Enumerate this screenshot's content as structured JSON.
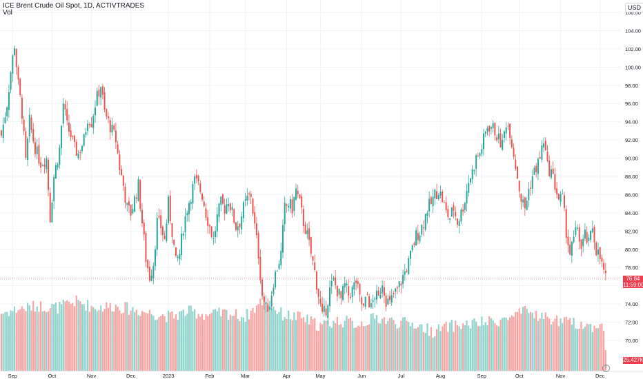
{
  "legend": {
    "title": "ICE Brent Crude Oil Spot, 1D, ACTIVTRADES",
    "volume_label": "Vol",
    "currency": "USD"
  },
  "last": {
    "price_label": "76.84",
    "countdown": "11:59:00",
    "volume_label": "25.427K"
  },
  "colors": {
    "up": "#26a69a",
    "down": "#ef5350",
    "up_volume": "#8fd3cc",
    "down_volume": "#f7a5a3",
    "grid": "#f0f3fa",
    "axis_text": "#131722",
    "last_price_line": "#f7525f"
  },
  "chart_data": {
    "type": "candlestick",
    "title": "ICE Brent Crude Oil Spot, 1D, ACTIVTRADES",
    "y_axis": {
      "side": "right",
      "price_ticks": [
        "106.00",
        "104.00",
        "102.00",
        "100.00",
        "98.00",
        "96.00",
        "94.00",
        "92.00",
        "90.00",
        "88.00",
        "86.00",
        "84.00",
        "82.00",
        "80.00",
        "78.00",
        "76.00",
        "74.00",
        "72.00",
        "70.00"
      ],
      "price_range": [
        68.5,
        106.0
      ]
    },
    "x_axis": {
      "ticks": [
        {
          "label": "Sep",
          "index": 6
        },
        {
          "label": "Oct",
          "index": 27
        },
        {
          "label": "Nov",
          "index": 48
        },
        {
          "label": "Dec",
          "index": 69
        },
        {
          "label": "2023",
          "index": 89
        },
        {
          "label": "Feb",
          "index": 111
        },
        {
          "label": "Mar",
          "index": 130
        },
        {
          "label": "Apr",
          "index": 152
        },
        {
          "label": "May",
          "index": 170
        },
        {
          "label": "Jun",
          "index": 192
        },
        {
          "label": "Jul",
          "index": 213
        },
        {
          "label": "Aug",
          "index": 234
        },
        {
          "label": "Sep",
          "index": 256
        },
        {
          "label": "Oct",
          "index": 276
        },
        {
          "label": "Nov",
          "index": 298
        },
        {
          "label": "Dec",
          "index": 319
        }
      ]
    },
    "close_path": [
      [
        0,
        92.5
      ],
      [
        3,
        96.0
      ],
      [
        5,
        99.5
      ],
      [
        7,
        102.5
      ],
      [
        9,
        98.0
      ],
      [
        11,
        95.0
      ],
      [
        13,
        89.5
      ],
      [
        15,
        94.0
      ],
      [
        17,
        92.0
      ],
      [
        19,
        90.5
      ],
      [
        21,
        89.5
      ],
      [
        24,
        90.0
      ],
      [
        26,
        83.5
      ],
      [
        28,
        88.0
      ],
      [
        31,
        91.0
      ],
      [
        33,
        96.0
      ],
      [
        35,
        93.5
      ],
      [
        37,
        92.5
      ],
      [
        39,
        91.0
      ],
      [
        41,
        90.5
      ],
      [
        44,
        92.0
      ],
      [
        46,
        94.5
      ],
      [
        48,
        94.0
      ],
      [
        50,
        96.0
      ],
      [
        53,
        98.0
      ],
      [
        55,
        95.0
      ],
      [
        57,
        94.0
      ],
      [
        59,
        93.0
      ],
      [
        61,
        92.0
      ],
      [
        63,
        89.0
      ],
      [
        65,
        87.0
      ],
      [
        67,
        84.5
      ],
      [
        69,
        84.0
      ],
      [
        71,
        85.5
      ],
      [
        73,
        87.0
      ],
      [
        75,
        83.0
      ],
      [
        77,
        79.0
      ],
      [
        79,
        77.0
      ],
      [
        81,
        78.5
      ],
      [
        83,
        83.0
      ],
      [
        85,
        82.5
      ],
      [
        87,
        81.0
      ],
      [
        89,
        85.0
      ],
      [
        91,
        82.0
      ],
      [
        93,
        78.5
      ],
      [
        95,
        79.5
      ],
      [
        97,
        82.5
      ],
      [
        99,
        84.5
      ],
      [
        101,
        86.0
      ],
      [
        103,
        87.5
      ],
      [
        105,
        87.0
      ],
      [
        107,
        86.0
      ],
      [
        109,
        84.0
      ],
      [
        111,
        82.5
      ],
      [
        113,
        81.0
      ],
      [
        115,
        83.5
      ],
      [
        117,
        85.0
      ],
      [
        119,
        84.5
      ],
      [
        121,
        85.5
      ],
      [
        123,
        84.0
      ],
      [
        125,
        82.5
      ],
      [
        127,
        83.0
      ],
      [
        129,
        84.5
      ],
      [
        131,
        85.5
      ],
      [
        133,
        86.0
      ],
      [
        135,
        82.5
      ],
      [
        137,
        79.5
      ],
      [
        139,
        75.0
      ],
      [
        141,
        73.5
      ],
      [
        143,
        74.0
      ],
      [
        145,
        76.5
      ],
      [
        147,
        78.0
      ],
      [
        149,
        79.5
      ],
      [
        151,
        84.5
      ],
      [
        153,
        85.0
      ],
      [
        155,
        84.5
      ],
      [
        157,
        86.5
      ],
      [
        159,
        85.0
      ],
      [
        161,
        83.0
      ],
      [
        163,
        81.5
      ],
      [
        165,
        79.5
      ],
      [
        167,
        77.5
      ],
      [
        169,
        75.0
      ],
      [
        171,
        72.5
      ],
      [
        173,
        73.5
      ],
      [
        175,
        75.5
      ],
      [
        177,
        76.5
      ],
      [
        179,
        75.5
      ],
      [
        181,
        74.5
      ],
      [
        183,
        76.0
      ],
      [
        185,
        75.0
      ],
      [
        187,
        75.5
      ],
      [
        189,
        76.5
      ],
      [
        191,
        74.5
      ],
      [
        193,
        73.5
      ],
      [
        195,
        75.0
      ],
      [
        197,
        73.5
      ],
      [
        199,
        75.0
      ],
      [
        201,
        74.5
      ],
      [
        203,
        76.5
      ],
      [
        205,
        74.5
      ],
      [
        207,
        74.0
      ],
      [
        209,
        75.0
      ],
      [
        211,
        75.5
      ],
      [
        213,
        76.5
      ],
      [
        215,
        77.5
      ],
      [
        217,
        78.5
      ],
      [
        219,
        80.0
      ],
      [
        221,
        81.5
      ],
      [
        223,
        82.0
      ],
      [
        225,
        83.0
      ],
      [
        227,
        84.5
      ],
      [
        229,
        85.0
      ],
      [
        231,
        86.0
      ],
      [
        233,
        86.5
      ],
      [
        235,
        85.5
      ],
      [
        237,
        84.0
      ],
      [
        239,
        83.5
      ],
      [
        241,
        84.5
      ],
      [
        243,
        83.0
      ],
      [
        245,
        84.0
      ],
      [
        247,
        85.5
      ],
      [
        249,
        87.5
      ],
      [
        251,
        88.5
      ],
      [
        253,
        90.0
      ],
      [
        255,
        90.5
      ],
      [
        257,
        92.0
      ],
      [
        259,
        93.5
      ],
      [
        261,
        93.5
      ],
      [
        263,
        93.0
      ],
      [
        265,
        92.0
      ],
      [
        267,
        91.5
      ],
      [
        269,
        94.0
      ],
      [
        271,
        93.0
      ],
      [
        273,
        90.5
      ],
      [
        275,
        88.0
      ],
      [
        277,
        85.5
      ],
      [
        279,
        84.5
      ],
      [
        281,
        86.5
      ],
      [
        283,
        88.0
      ],
      [
        285,
        89.0
      ],
      [
        287,
        90.0
      ],
      [
        289,
        92.0
      ],
      [
        291,
        89.0
      ],
      [
        293,
        88.5
      ],
      [
        295,
        87.0
      ],
      [
        297,
        85.5
      ],
      [
        299,
        85.5
      ],
      [
        301,
        82.0
      ],
      [
        303,
        79.5
      ],
      [
        305,
        81.0
      ],
      [
        307,
        82.5
      ],
      [
        309,
        80.0
      ],
      [
        311,
        81.5
      ],
      [
        313,
        80.5
      ],
      [
        315,
        82.5
      ],
      [
        317,
        80.0
      ],
      [
        319,
        79.0
      ],
      [
        321,
        77.5
      ],
      [
        322,
        76.84
      ]
    ],
    "volume_path": [
      [
        0,
        73.0
      ],
      [
        10,
        73.5
      ],
      [
        20,
        73.8
      ],
      [
        30,
        73.6
      ],
      [
        40,
        74.3
      ],
      [
        50,
        73.6
      ],
      [
        60,
        73.8
      ],
      [
        70,
        73.4
      ],
      [
        80,
        73.0
      ],
      [
        90,
        72.6
      ],
      [
        100,
        73.2
      ],
      [
        110,
        72.8
      ],
      [
        120,
        73.0
      ],
      [
        130,
        72.6
      ],
      [
        140,
        74.5
      ],
      [
        150,
        72.8
      ],
      [
        160,
        72.5
      ],
      [
        170,
        71.6
      ],
      [
        180,
        72.2
      ],
      [
        190,
        71.8
      ],
      [
        200,
        72.5
      ],
      [
        210,
        72.0
      ],
      [
        220,
        71.8
      ],
      [
        230,
        71.0
      ],
      [
        240,
        71.6
      ],
      [
        250,
        71.8
      ],
      [
        260,
        72.0
      ],
      [
        270,
        72.4
      ],
      [
        280,
        73.2
      ],
      [
        290,
        72.5
      ],
      [
        300,
        72.0
      ],
      [
        310,
        71.8
      ],
      [
        316,
        71.4
      ],
      [
        320,
        72.3
      ],
      [
        322,
        68.8
      ]
    ]
  }
}
